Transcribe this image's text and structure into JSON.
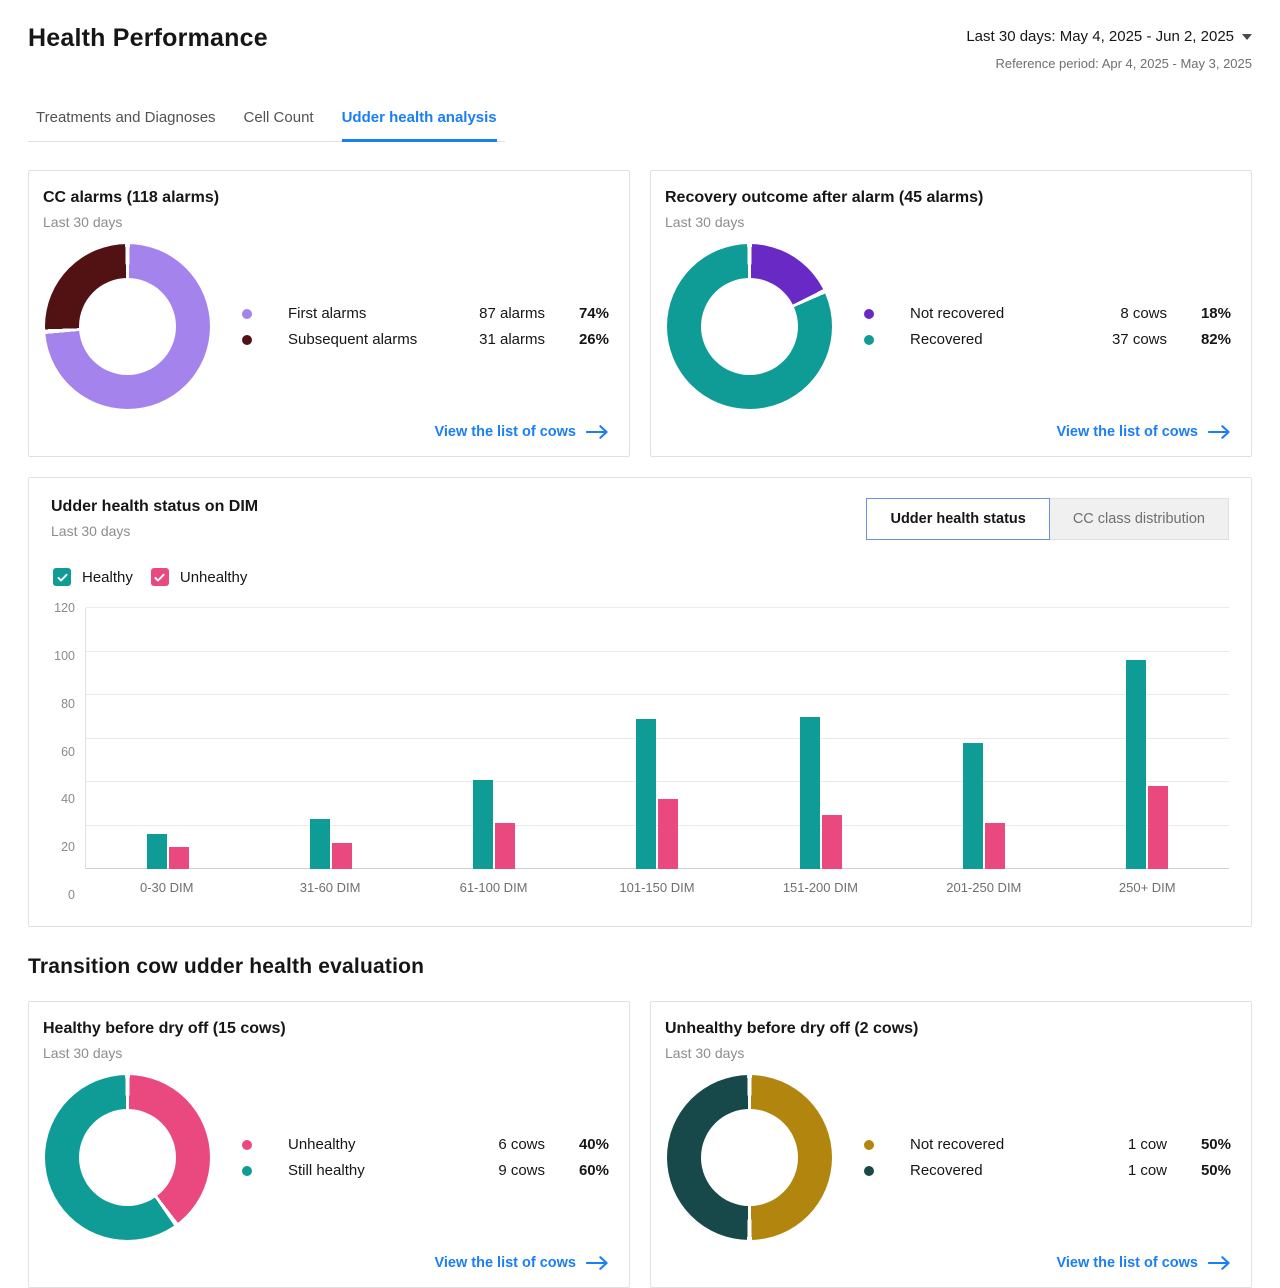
{
  "header": {
    "title": "Health Performance",
    "date_range": "Last 30 days: May 4, 2025 - Jun 2, 2025",
    "reference_period": "Reference period: Apr 4, 2025 - May 3, 2025"
  },
  "tabs": [
    {
      "label": "Treatments and Diagnoses",
      "active": false
    },
    {
      "label": "Cell Count",
      "active": false
    },
    {
      "label": "Udder health analysis",
      "active": true
    }
  ],
  "colors": {
    "accent_blue": "#1a7ef5",
    "teal": "#0f9b96",
    "pink": "#e9497f",
    "light_purple": "#a583ec",
    "dark_maroon": "#521214",
    "dark_purple": "#6929c4",
    "dark_teal": "#17494b",
    "gold": "#b2860e"
  },
  "cards": {
    "cc_alarms": {
      "title": "CC alarms (118 alarms)",
      "subtitle": "Last 30 days",
      "link_label": "View the list of cows",
      "segments": [
        {
          "label": "First alarms",
          "count": "87 alarms",
          "percent": "74%",
          "value": 74,
          "color": "#a583ec"
        },
        {
          "label": "Subsequent alarms",
          "count": "31 alarms",
          "percent": "26%",
          "value": 26,
          "color": "#521214"
        }
      ]
    },
    "recovery_outcome": {
      "title": "Recovery outcome after alarm (45 alarms)",
      "subtitle": "Last 30 days",
      "link_label": "View the list of cows",
      "segments": [
        {
          "label": "Not recovered",
          "count": "8 cows",
          "percent": "18%",
          "value": 18,
          "color": "#6929c4"
        },
        {
          "label": "Recovered",
          "count": "37 cows",
          "percent": "82%",
          "value": 82,
          "color": "#0f9b96"
        }
      ]
    },
    "healthy_before_dry_off": {
      "title": "Healthy before dry off (15 cows)",
      "subtitle": "Last 30 days",
      "link_label": "View the list of cows",
      "segments": [
        {
          "label": "Unhealthy",
          "count": "6 cows",
          "percent": "40%",
          "value": 40,
          "color": "#e9497f"
        },
        {
          "label": "Still healthy",
          "count": "9 cows",
          "percent": "60%",
          "value": 60,
          "color": "#0f9b96"
        }
      ]
    },
    "unhealthy_before_dry_off": {
      "title": "Unhealthy before dry off (2 cows)",
      "subtitle": "Last 30 days",
      "link_label": "View the list of cows",
      "segments": [
        {
          "label": "Not recovered",
          "count": "1 cow",
          "percent": "50%",
          "value": 50,
          "color": "#b2860e"
        },
        {
          "label": "Recovered",
          "count": "1 cow",
          "percent": "50%",
          "value": 50,
          "color": "#17494b"
        }
      ]
    }
  },
  "dim_chart": {
    "title": "Udder health status on DIM",
    "subtitle": "Last 30 days",
    "toggles": [
      {
        "label": "Udder health status",
        "active": true
      },
      {
        "label": "CC class distribution",
        "active": false
      }
    ],
    "legend": [
      {
        "label": "Healthy",
        "color": "#0f9b96",
        "checked": true
      },
      {
        "label": "Unhealthy",
        "color": "#e9497f",
        "checked": true
      }
    ],
    "chart_data": {
      "type": "bar",
      "categories": [
        "0-30 DIM",
        "31-60 DIM",
        "61-100 DIM",
        "101-150 DIM",
        "151-200 DIM",
        "201-250 DIM",
        "250+ DIM"
      ],
      "series": [
        {
          "name": "Healthy",
          "color": "#0f9b96",
          "values": [
            16,
            23,
            41,
            69,
            70,
            58,
            96
          ]
        },
        {
          "name": "Unhealthy",
          "color": "#e9497f",
          "values": [
            10,
            12,
            21,
            32,
            25,
            21,
            38
          ]
        }
      ],
      "title": "Udder health status on DIM",
      "xlabel": "",
      "ylabel": "",
      "ylim": [
        0,
        120
      ],
      "ytick_step": 20,
      "grid": true,
      "legend_position": "top-left"
    }
  },
  "section_title": "Transition cow udder health evaluation"
}
